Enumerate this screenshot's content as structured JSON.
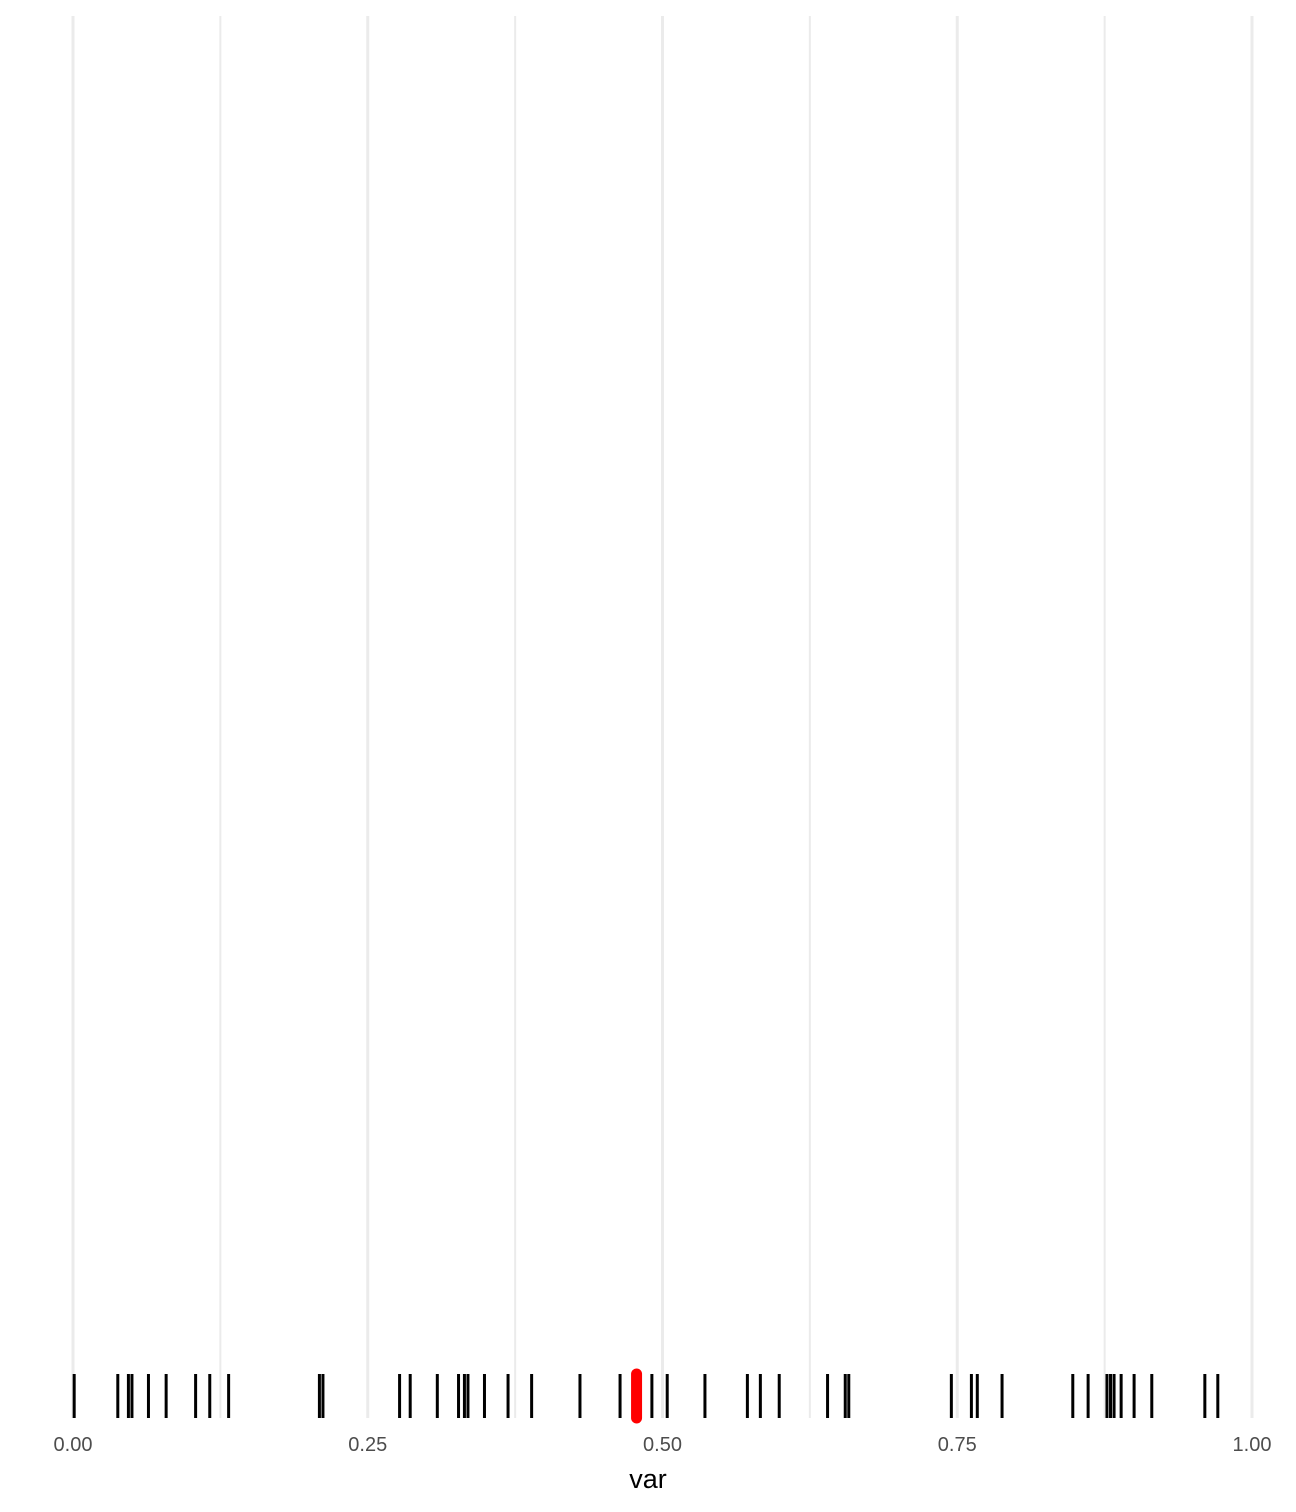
{
  "chart_data": {
    "type": "rug",
    "xlabel": "var",
    "xlim": [
      0,
      1
    ],
    "x_ticks": [
      0.0,
      0.25,
      0.5,
      0.75,
      1.0
    ],
    "x_tick_labels": [
      "0.00",
      "0.25",
      "0.50",
      "0.75",
      "1.00"
    ],
    "grid": "vertical major and minor",
    "rug_values": [
      0.001,
      0.038,
      0.047,
      0.05,
      0.064,
      0.079,
      0.104,
      0.116,
      0.132,
      0.209,
      0.212,
      0.277,
      0.286,
      0.309,
      0.327,
      0.332,
      0.335,
      0.349,
      0.369,
      0.389,
      0.43,
      0.464,
      0.476,
      0.479,
      0.491,
      0.504,
      0.536,
      0.572,
      0.583,
      0.599,
      0.64,
      0.655,
      0.658,
      0.745,
      0.762,
      0.767,
      0.788,
      0.848,
      0.861,
      0.877,
      0.88,
      0.883,
      0.889,
      0.9,
      0.915,
      0.96,
      0.971
    ],
    "highlight": {
      "x": 0.478,
      "color": "#ff0000"
    },
    "colors": {
      "rug": "#000000",
      "grid": "#ebebeb",
      "highlight": "#ff0000"
    }
  }
}
